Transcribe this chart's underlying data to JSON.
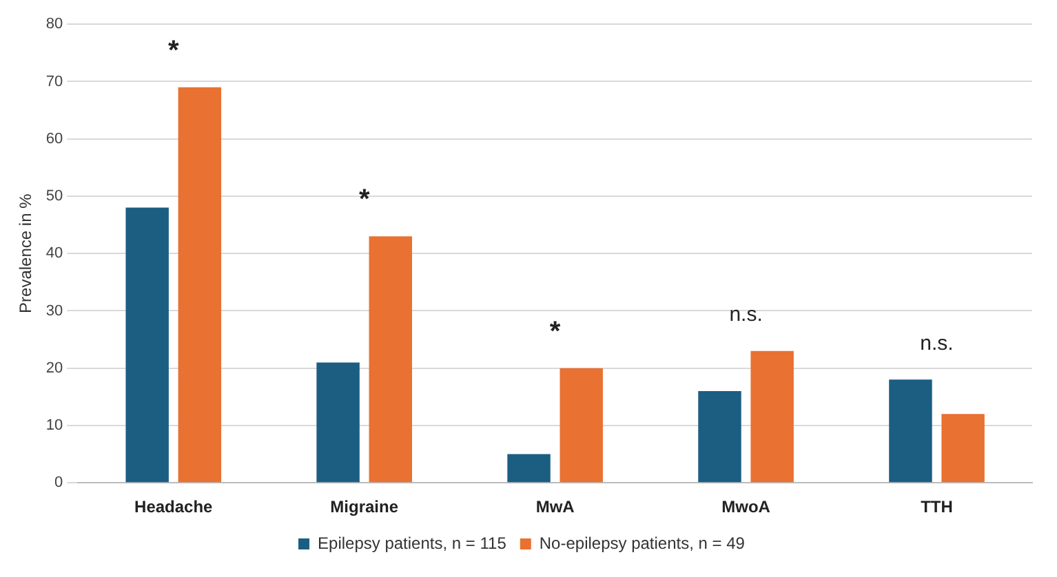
{
  "chart_data": {
    "type": "bar",
    "ylabel": "Prevalence in %",
    "categories": [
      "Headache",
      "Migraine",
      "MwA",
      "MwoA",
      "TTH"
    ],
    "series": [
      {
        "name": "Epilepsy patients, n = 115",
        "color": "#1b5e82",
        "values": [
          48,
          21,
          5,
          16,
          18
        ]
      },
      {
        "name": "No-epilepsy patients, n = 49",
        "color": "#e97132",
        "values": [
          69,
          43,
          20,
          23,
          12
        ]
      }
    ],
    "ylim": [
      0,
      80
    ],
    "yticks": [
      0,
      10,
      20,
      30,
      40,
      50,
      60,
      70,
      80
    ],
    "grid": "y",
    "legend": "bottom",
    "annotations": [
      "*",
      "*",
      "*",
      "n.s.",
      "n.s."
    ]
  }
}
